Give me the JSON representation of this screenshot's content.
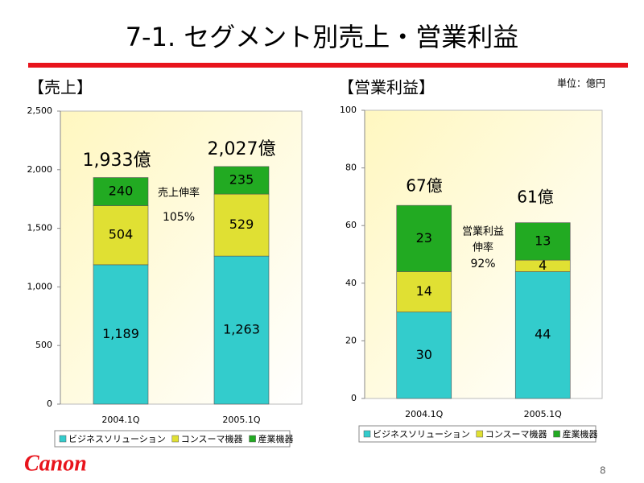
{
  "title": "7-1. セグメント別売上・営業利益",
  "unit": "単位：億円",
  "logo": "Canon",
  "page_number": "8",
  "chart_data": [
    {
      "type": "bar",
      "stacked": true,
      "title": "【売上】",
      "categories": [
        "2004.1Q",
        "2005.1Q"
      ],
      "series": [
        {
          "name": "ビジネスソリューション",
          "color": "#33cccc",
          "values": [
            1189,
            1263
          ],
          "value_labels": [
            "1,189",
            "1,263"
          ]
        },
        {
          "name": "コンスーマ機器",
          "color": "#e0e033",
          "values": [
            504,
            529
          ]
        },
        {
          "name": "産業機器",
          "color": "#22aa22",
          "values": [
            240,
            235
          ]
        }
      ],
      "ylim": [
        0,
        2500
      ],
      "yticks": [
        0,
        500,
        {
          "value": 1000,
          "label": "1,000"
        },
        {
          "value": 1500,
          "label": "1,500"
        },
        {
          "value": 2000,
          "label": "2,000"
        },
        {
          "value": 2500,
          "label": "2,500"
        }
      ],
      "annotations": [
        "1,933億",
        "2,027億",
        "売上伸率",
        "105%"
      ]
    },
    {
      "type": "bar",
      "stacked": true,
      "title": "【営業利益】",
      "categories": [
        "2004.1Q",
        "2005.1Q"
      ],
      "series": [
        {
          "name": "ビジネスソリューション",
          "color": "#33cccc",
          "values": [
            30,
            44
          ]
        },
        {
          "name": "コンスーマ機器",
          "color": "#e0e033",
          "values": [
            14,
            4
          ]
        },
        {
          "name": "産業機器",
          "color": "#22aa22",
          "values": [
            23,
            13
          ]
        }
      ],
      "ylim": [
        0,
        100
      ],
      "yticks": [
        0,
        20,
        40,
        60,
        80,
        100
      ],
      "annotations": [
        "67億",
        "61億",
        "営業利益",
        "伸率",
        "92%"
      ]
    }
  ]
}
